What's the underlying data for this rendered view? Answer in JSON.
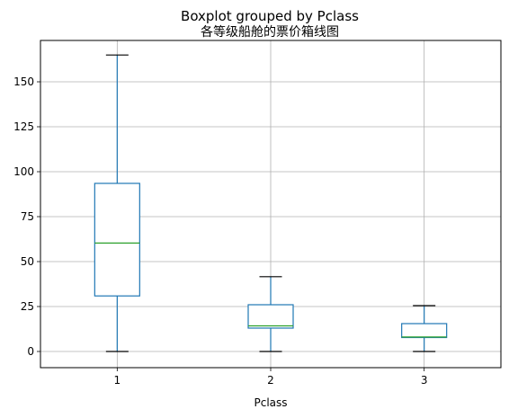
{
  "chart_data": {
    "type": "boxplot",
    "suptitle": "Boxplot grouped by Pclass",
    "title": "各等级船舱的票价箱线图",
    "xlabel": "Pclass",
    "ylabel": "",
    "categories": [
      "1",
      "2",
      "3"
    ],
    "ylim": [
      -9,
      173
    ],
    "yticks": [
      0,
      25,
      50,
      75,
      100,
      125,
      150
    ],
    "grid": true,
    "boxes": [
      {
        "category": "1",
        "whisker_low": 0,
        "q1": 30.9,
        "median": 60.3,
        "q3": 93.5,
        "whisker_high": 164.9
      },
      {
        "category": "2",
        "whisker_low": 0,
        "q1": 13.0,
        "median": 14.25,
        "q3": 26.0,
        "whisker_high": 41.6
      },
      {
        "category": "3",
        "whisker_low": 0,
        "q1": 7.75,
        "median": 8.05,
        "q3": 15.5,
        "whisker_high": 25.5
      }
    ],
    "colors": {
      "box": "#1f77b4",
      "median": "#2ca02c",
      "whisker_cap": "#000000",
      "grid": "#b0b0b0"
    }
  }
}
